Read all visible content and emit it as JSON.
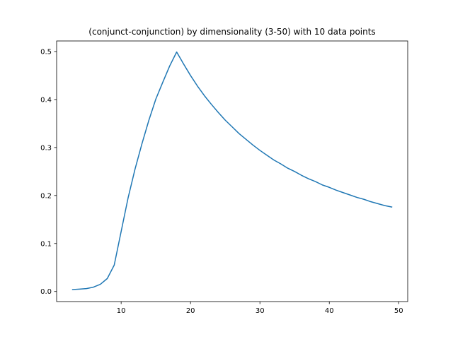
{
  "chart_data": {
    "type": "line",
    "title": "(conjunct-conjunction) by dimensionality (3-50) with 10 data points",
    "xlabel": "",
    "ylabel": "",
    "xlim": [
      0.7,
      51.3
    ],
    "ylim": [
      -0.021,
      0.522
    ],
    "xticks": [
      10,
      20,
      30,
      40,
      50
    ],
    "yticks": [
      0.0,
      0.1,
      0.2,
      0.3,
      0.4,
      0.5
    ],
    "ytick_labels": [
      "0.0",
      "0.1",
      "0.2",
      "0.3",
      "0.4",
      "0.5"
    ],
    "grid": false,
    "legend": "none",
    "series": [
      {
        "color": "#1f77b4",
        "x": [
          3,
          4,
          5,
          6,
          7,
          8,
          9,
          10,
          11,
          12,
          13,
          14,
          15,
          16,
          17,
          18,
          19,
          20,
          21,
          22,
          23,
          24,
          25,
          26,
          27,
          28,
          29,
          30,
          31,
          32,
          33,
          34,
          35,
          36,
          37,
          38,
          39,
          40,
          41,
          42,
          43,
          44,
          45,
          46,
          47,
          48,
          49
        ],
        "y": [
          0.004,
          0.005,
          0.006,
          0.009,
          0.015,
          0.027,
          0.055,
          0.125,
          0.195,
          0.255,
          0.308,
          0.357,
          0.401,
          0.436,
          0.47,
          0.499,
          0.474,
          0.45,
          0.428,
          0.408,
          0.39,
          0.373,
          0.357,
          0.343,
          0.329,
          0.317,
          0.305,
          0.294,
          0.284,
          0.274,
          0.266,
          0.257,
          0.25,
          0.242,
          0.235,
          0.229,
          0.222,
          0.217,
          0.211,
          0.206,
          0.201,
          0.196,
          0.192,
          0.187,
          0.183,
          0.179,
          0.176
        ]
      }
    ]
  }
}
